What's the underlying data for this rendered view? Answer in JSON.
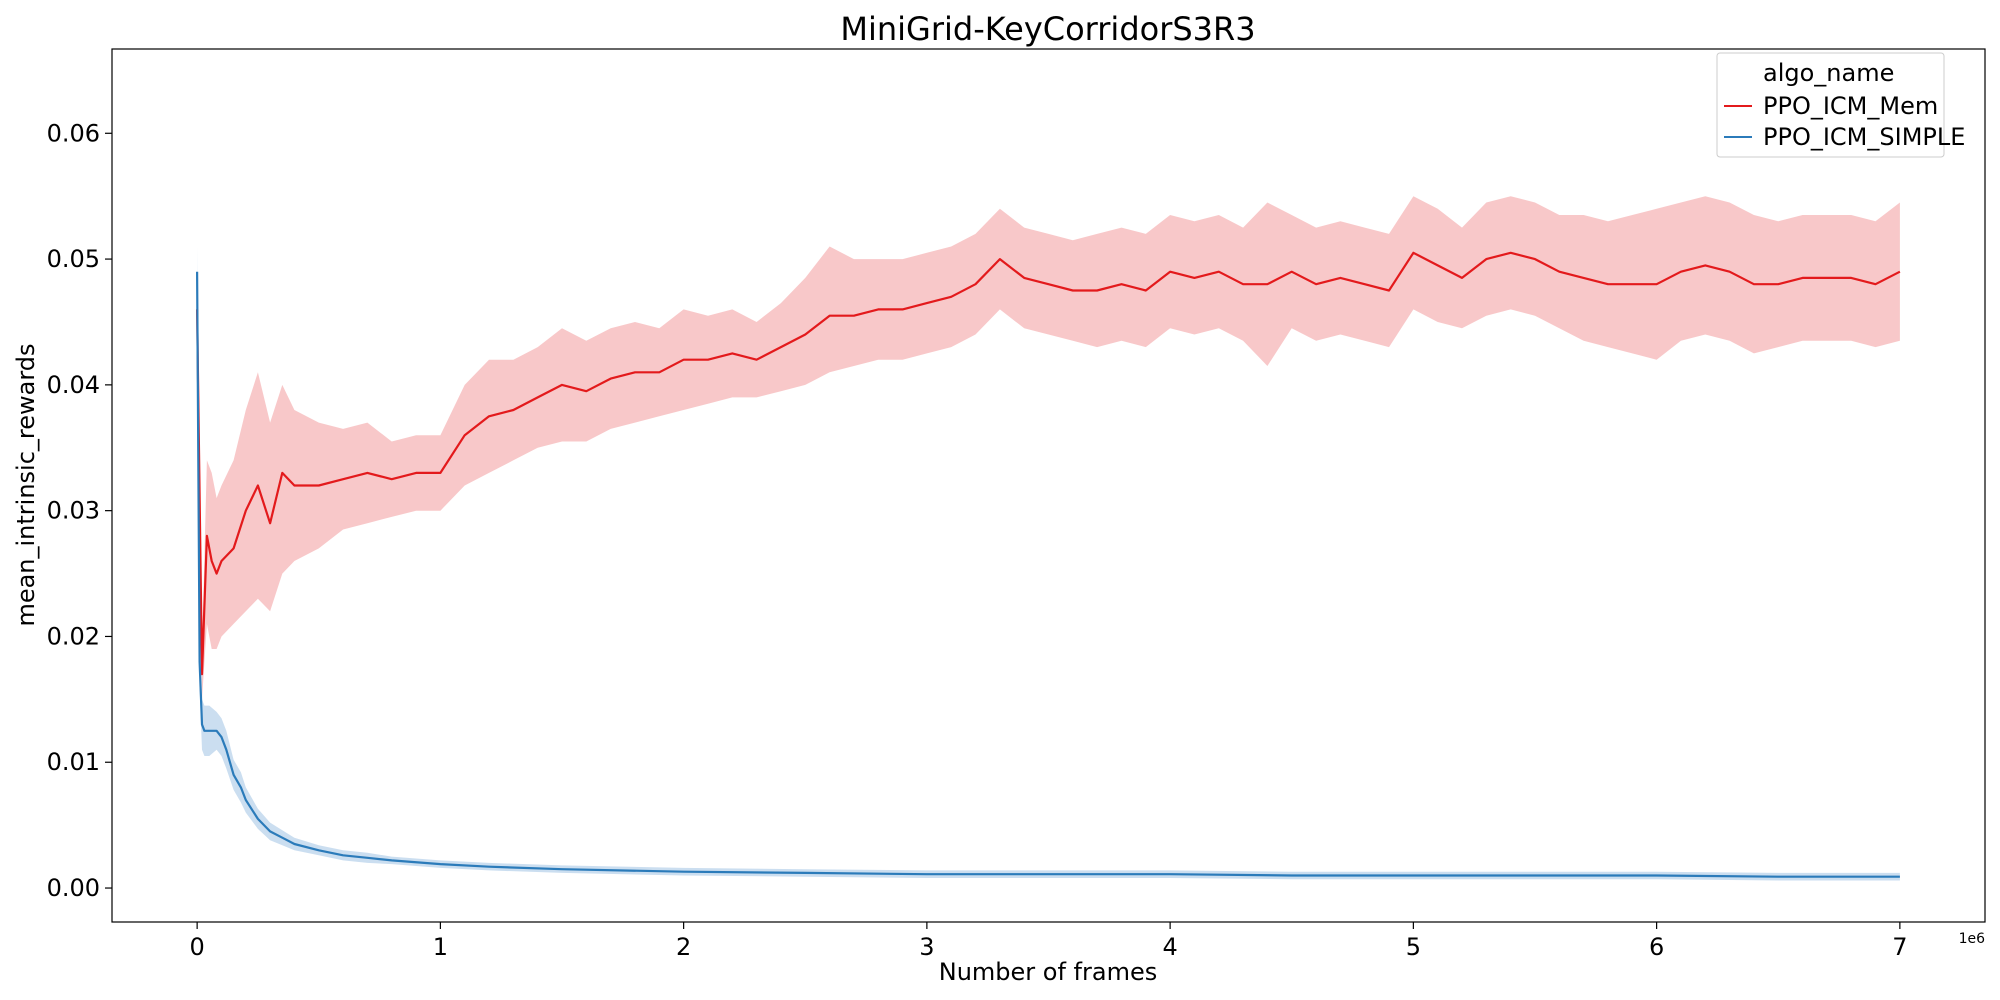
{
  "chart_data": {
    "type": "line",
    "title": "MiniGrid-KeyCorridorS3R3",
    "xlabel": "Number of frames",
    "ylabel": "mean_intrinsic_rewards",
    "x_offset_label": "1e6",
    "xlim": [
      -0.35,
      7.35
    ],
    "ylim": [
      -0.0027,
      0.0667
    ],
    "xticks": [
      0,
      1,
      2,
      3,
      4,
      5,
      6,
      7
    ],
    "xtick_labels": [
      "0",
      "1",
      "2",
      "3",
      "4",
      "5",
      "6",
      "7"
    ],
    "yticks": [
      0.0,
      0.01,
      0.02,
      0.03,
      0.04,
      0.05,
      0.06
    ],
    "ytick_labels": [
      "0.00",
      "0.01",
      "0.02",
      "0.03",
      "0.04",
      "0.05",
      "0.06"
    ],
    "grid": false,
    "legend": {
      "title": "algo_name",
      "position": "top-right"
    },
    "series": [
      {
        "name": "PPO_ICM_Mem",
        "color": "#e31a1c",
        "band_color": "#f4a4a5",
        "x": [
          0,
          0.02,
          0.04,
          0.06,
          0.08,
          0.1,
          0.15,
          0.2,
          0.25,
          0.3,
          0.35,
          0.4,
          0.5,
          0.6,
          0.7,
          0.8,
          0.9,
          1.0,
          1.1,
          1.2,
          1.3,
          1.4,
          1.5,
          1.6,
          1.7,
          1.8,
          1.9,
          2.0,
          2.1,
          2.2,
          2.3,
          2.4,
          2.5,
          2.6,
          2.7,
          2.8,
          2.9,
          3.0,
          3.1,
          3.2,
          3.3,
          3.4,
          3.5,
          3.6,
          3.7,
          3.8,
          3.9,
          4.0,
          4.1,
          4.2,
          4.3,
          4.4,
          4.5,
          4.6,
          4.7,
          4.8,
          4.9,
          5.0,
          5.1,
          5.2,
          5.3,
          5.4,
          5.5,
          5.6,
          5.7,
          5.8,
          5.9,
          6.0,
          6.1,
          6.2,
          6.3,
          6.4,
          6.5,
          6.6,
          6.7,
          6.8,
          6.9,
          7.0
        ],
        "y": [
          0.046,
          0.017,
          0.028,
          0.026,
          0.025,
          0.026,
          0.027,
          0.03,
          0.032,
          0.029,
          0.033,
          0.032,
          0.032,
          0.0325,
          0.033,
          0.0325,
          0.033,
          0.033,
          0.036,
          0.0375,
          0.038,
          0.039,
          0.04,
          0.0395,
          0.0405,
          0.041,
          0.041,
          0.042,
          0.042,
          0.0425,
          0.042,
          0.043,
          0.044,
          0.0455,
          0.0455,
          0.046,
          0.046,
          0.0465,
          0.047,
          0.048,
          0.05,
          0.0485,
          0.048,
          0.0475,
          0.0475,
          0.048,
          0.0475,
          0.049,
          0.0485,
          0.049,
          0.048,
          0.048,
          0.049,
          0.048,
          0.0485,
          0.048,
          0.0475,
          0.0505,
          0.0495,
          0.0485,
          0.05,
          0.0505,
          0.05,
          0.049,
          0.0485,
          0.048,
          0.048,
          0.048,
          0.049,
          0.0495,
          0.049,
          0.048,
          0.048,
          0.0485,
          0.0485,
          0.0485,
          0.048,
          0.049
        ],
        "lower": [
          0.044,
          0.015,
          0.021,
          0.019,
          0.019,
          0.02,
          0.021,
          0.022,
          0.023,
          0.022,
          0.025,
          0.026,
          0.027,
          0.0285,
          0.029,
          0.0295,
          0.03,
          0.03,
          0.032,
          0.033,
          0.034,
          0.035,
          0.0355,
          0.0355,
          0.0365,
          0.037,
          0.0375,
          0.038,
          0.0385,
          0.039,
          0.039,
          0.0395,
          0.04,
          0.041,
          0.0415,
          0.042,
          0.042,
          0.0425,
          0.043,
          0.044,
          0.046,
          0.0445,
          0.044,
          0.0435,
          0.043,
          0.0435,
          0.043,
          0.0445,
          0.044,
          0.0445,
          0.0435,
          0.0415,
          0.0445,
          0.0435,
          0.044,
          0.0435,
          0.043,
          0.046,
          0.045,
          0.0445,
          0.0455,
          0.046,
          0.0455,
          0.0445,
          0.0435,
          0.043,
          0.0425,
          0.042,
          0.0435,
          0.044,
          0.0435,
          0.0425,
          0.043,
          0.0435,
          0.0435,
          0.0435,
          0.043,
          0.0435
        ],
        "upper": [
          0.048,
          0.019,
          0.034,
          0.033,
          0.031,
          0.032,
          0.034,
          0.038,
          0.041,
          0.037,
          0.04,
          0.038,
          0.037,
          0.0365,
          0.037,
          0.0355,
          0.036,
          0.036,
          0.04,
          0.042,
          0.042,
          0.043,
          0.0445,
          0.0435,
          0.0445,
          0.045,
          0.0445,
          0.046,
          0.0455,
          0.046,
          0.045,
          0.0465,
          0.0485,
          0.051,
          0.05,
          0.05,
          0.05,
          0.0505,
          0.051,
          0.052,
          0.054,
          0.0525,
          0.052,
          0.0515,
          0.052,
          0.0525,
          0.052,
          0.0535,
          0.053,
          0.0535,
          0.0525,
          0.0545,
          0.0535,
          0.0525,
          0.053,
          0.0525,
          0.052,
          0.055,
          0.054,
          0.0525,
          0.0545,
          0.055,
          0.0545,
          0.0535,
          0.0535,
          0.053,
          0.0535,
          0.054,
          0.0545,
          0.055,
          0.0545,
          0.0535,
          0.053,
          0.0535,
          0.0535,
          0.0535,
          0.053,
          0.0545
        ]
      },
      {
        "name": "PPO_ICM_SIMPLE",
        "color": "#2b7bba",
        "band_color": "#a9c8e6",
        "x": [
          0,
          0.01,
          0.02,
          0.03,
          0.05,
          0.08,
          0.1,
          0.12,
          0.15,
          0.18,
          0.2,
          0.25,
          0.3,
          0.35,
          0.4,
          0.5,
          0.6,
          0.7,
          0.8,
          1.0,
          1.2,
          1.5,
          2.0,
          2.5,
          3.0,
          3.5,
          4.0,
          4.5,
          5.0,
          5.5,
          6.0,
          6.5,
          7.0
        ],
        "y": [
          0.049,
          0.018,
          0.013,
          0.0125,
          0.0125,
          0.0125,
          0.012,
          0.011,
          0.009,
          0.008,
          0.007,
          0.0055,
          0.0045,
          0.004,
          0.0035,
          0.003,
          0.0026,
          0.0024,
          0.0022,
          0.0019,
          0.0017,
          0.0015,
          0.0013,
          0.0012,
          0.0011,
          0.0011,
          0.0011,
          0.001,
          0.001,
          0.001,
          0.001,
          0.0009,
          0.0009
        ],
        "lower": [
          0.047,
          0.016,
          0.011,
          0.0105,
          0.0105,
          0.011,
          0.0105,
          0.0095,
          0.0078,
          0.0068,
          0.006,
          0.0047,
          0.0038,
          0.0034,
          0.003,
          0.0026,
          0.0022,
          0.002,
          0.0019,
          0.0016,
          0.0014,
          0.0012,
          0.001,
          0.0009,
          0.0008,
          0.0008,
          0.0008,
          0.0007,
          0.0007,
          0.0007,
          0.0007,
          0.0006,
          0.0006
        ],
        "upper": [
          0.051,
          0.02,
          0.015,
          0.0145,
          0.0145,
          0.014,
          0.0135,
          0.0125,
          0.0102,
          0.0092,
          0.008,
          0.0063,
          0.0052,
          0.0046,
          0.004,
          0.0034,
          0.003,
          0.0028,
          0.0025,
          0.0022,
          0.002,
          0.0018,
          0.0016,
          0.0015,
          0.0014,
          0.0014,
          0.0014,
          0.0013,
          0.0013,
          0.0013,
          0.0013,
          0.0012,
          0.0012
        ]
      }
    ]
  }
}
